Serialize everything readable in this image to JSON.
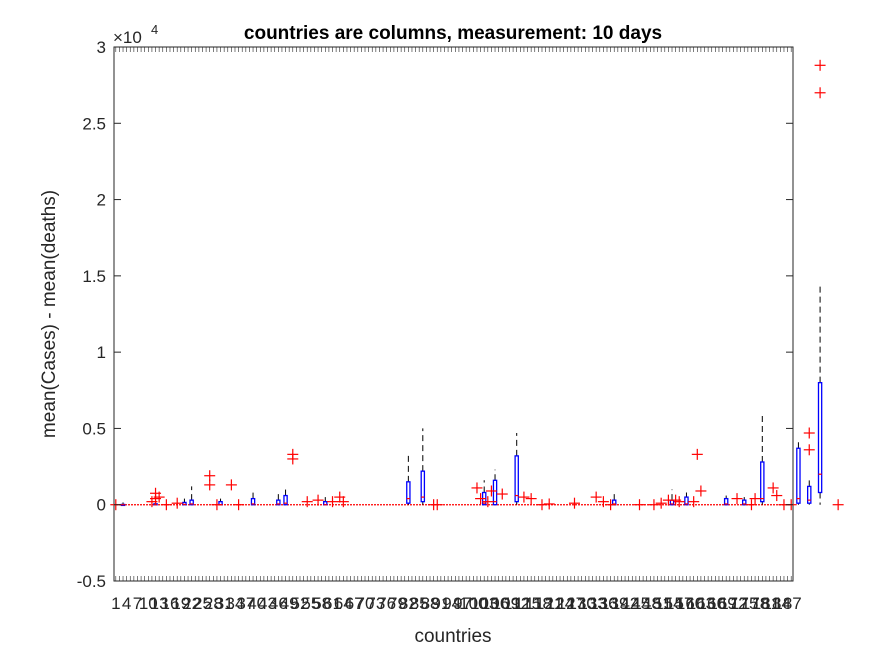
{
  "chart_data": {
    "type": "box",
    "title": "countries are columns, measurement: 10 days",
    "xlabel": "countries",
    "ylabel": "mean(Cases) - mean(deaths)",
    "y_exponent_label": "×10",
    "y_exponent_power": "4",
    "ylim": [
      -5000,
      30000
    ],
    "yticks": [
      -5000,
      0,
      5000,
      10000,
      15000,
      20000,
      25000,
      30000
    ],
    "ytick_labels": [
      "-0.5",
      "0",
      "0.5",
      "1",
      "1.5",
      "2",
      "2.5",
      "3"
    ],
    "n_categories": 188,
    "xtick_labels_note": "tick labels overlap and are illegible",
    "box_color": "#0000ff",
    "median_color": "#ff0000",
    "outlier_color": "#ff0000",
    "whisker_color": "#000000",
    "boxes": [
      {
        "x": 3,
        "q1": 0,
        "q3": 20,
        "median": 0,
        "lo": 0,
        "hi": 150,
        "outliers": []
      },
      {
        "x": 12,
        "q1": 0,
        "q3": 60,
        "median": 0,
        "lo": 0,
        "hi": 300,
        "outliers": [
          400,
          750
        ]
      },
      {
        "x": 20,
        "q1": 0,
        "q3": 150,
        "median": 20,
        "lo": 0,
        "hi": 400,
        "outliers": []
      },
      {
        "x": 22,
        "q1": 0,
        "q3": 300,
        "median": 50,
        "lo": 0,
        "hi": 1200,
        "outliers": []
      },
      {
        "x": 30,
        "q1": 0,
        "q3": 200,
        "median": 0,
        "lo": 0,
        "hi": 400,
        "outliers": []
      },
      {
        "x": 39,
        "q1": 0,
        "q3": 400,
        "median": 50,
        "lo": 0,
        "hi": 900,
        "outliers": []
      },
      {
        "x": 46,
        "q1": 0,
        "q3": 300,
        "median": 50,
        "lo": 0,
        "hi": 700,
        "outliers": []
      },
      {
        "x": 48,
        "q1": 0,
        "q3": 600,
        "median": 100,
        "lo": 0,
        "hi": 1000,
        "outliers": []
      },
      {
        "x": 59,
        "q1": 0,
        "q3": 200,
        "median": 0,
        "lo": 0,
        "hi": 500,
        "outliers": []
      },
      {
        "x": 82,
        "q1": 100,
        "q3": 1500,
        "median": 400,
        "lo": 0,
        "hi": 3300,
        "outliers": []
      },
      {
        "x": 86,
        "q1": 200,
        "q3": 2200,
        "median": 500,
        "lo": 0,
        "hi": 5000,
        "outliers": []
      },
      {
        "x": 103,
        "q1": 0,
        "q3": 800,
        "median": 100,
        "lo": 0,
        "hi": 1600,
        "outliers": []
      },
      {
        "x": 106,
        "q1": 0,
        "q3": 1600,
        "median": 200,
        "lo": 0,
        "hi": 2300,
        "outliers": []
      },
      {
        "x": 112,
        "q1": 200,
        "q3": 3200,
        "median": 600,
        "lo": 0,
        "hi": 4700,
        "outliers": []
      },
      {
        "x": 139,
        "q1": 0,
        "q3": 300,
        "median": 50,
        "lo": 0,
        "hi": 900,
        "outliers": []
      },
      {
        "x": 155,
        "q1": 0,
        "q3": 300,
        "median": 50,
        "lo": 0,
        "hi": 1000,
        "outliers": []
      },
      {
        "x": 159,
        "q1": 0,
        "q3": 500,
        "median": 50,
        "lo": 0,
        "hi": 800,
        "outliers": []
      },
      {
        "x": 170,
        "q1": 0,
        "q3": 400,
        "median": 50,
        "lo": 0,
        "hi": 600,
        "outliers": []
      },
      {
        "x": 175,
        "q1": 0,
        "q3": 300,
        "median": 50,
        "lo": 0,
        "hi": 500,
        "outliers": []
      },
      {
        "x": 180,
        "q1": 200,
        "q3": 2800,
        "median": 400,
        "lo": 0,
        "hi": 6000,
        "outliers": []
      },
      {
        "x": 190,
        "q1": 100,
        "q3": 3700,
        "median": 400,
        "lo": 0,
        "hi": 4300,
        "outliers": []
      },
      {
        "x": 193,
        "q1": 100,
        "q3": 1200,
        "median": 300,
        "lo": 0,
        "hi": 1800,
        "outliers": [
          3600,
          4700
        ]
      },
      {
        "x": 196,
        "q1": 800,
        "q3": 8000,
        "median": 2000,
        "lo": 0,
        "hi": 14300,
        "outliers": [
          27000,
          28800
        ]
      }
    ],
    "extra_outliers": [
      {
        "x": 1,
        "y": 0
      },
      {
        "x": 11,
        "y": 200
      },
      {
        "x": 13,
        "y": 500
      },
      {
        "x": 15,
        "y": 0
      },
      {
        "x": 18,
        "y": 100
      },
      {
        "x": 27,
        "y": 1300
      },
      {
        "x": 27,
        "y": 1900
      },
      {
        "x": 33,
        "y": 1300
      },
      {
        "x": 29,
        "y": 0
      },
      {
        "x": 35,
        "y": 0
      },
      {
        "x": 50,
        "y": 3000
      },
      {
        "x": 50,
        "y": 3300
      },
      {
        "x": 54,
        "y": 200
      },
      {
        "x": 57,
        "y": 300
      },
      {
        "x": 61,
        "y": 200
      },
      {
        "x": 63,
        "y": 500
      },
      {
        "x": 64,
        "y": 200
      },
      {
        "x": 89,
        "y": 0
      },
      {
        "x": 90,
        "y": 0
      },
      {
        "x": 101,
        "y": 1100
      },
      {
        "x": 102,
        "y": 400
      },
      {
        "x": 104,
        "y": 200
      },
      {
        "x": 105,
        "y": 900
      },
      {
        "x": 108,
        "y": 700
      },
      {
        "x": 114,
        "y": 500
      },
      {
        "x": 116,
        "y": 400
      },
      {
        "x": 119,
        "y": 0
      },
      {
        "x": 121,
        "y": 50
      },
      {
        "x": 128,
        "y": 100
      },
      {
        "x": 134,
        "y": 500
      },
      {
        "x": 136,
        "y": 200
      },
      {
        "x": 138,
        "y": 0
      },
      {
        "x": 146,
        "y": 0
      },
      {
        "x": 150,
        "y": 0
      },
      {
        "x": 152,
        "y": 100
      },
      {
        "x": 154,
        "y": 300
      },
      {
        "x": 156,
        "y": 300
      },
      {
        "x": 157,
        "y": 200
      },
      {
        "x": 162,
        "y": 3300
      },
      {
        "x": 163,
        "y": 900
      },
      {
        "x": 161,
        "y": 200
      },
      {
        "x": 173,
        "y": 400
      },
      {
        "x": 177,
        "y": 0
      },
      {
        "x": 178,
        "y": 400
      },
      {
        "x": 183,
        "y": 1100
      },
      {
        "x": 184,
        "y": 600
      },
      {
        "x": 186,
        "y": 0
      },
      {
        "x": 188,
        "y": 0
      },
      {
        "x": 201,
        "y": 0
      }
    ]
  }
}
